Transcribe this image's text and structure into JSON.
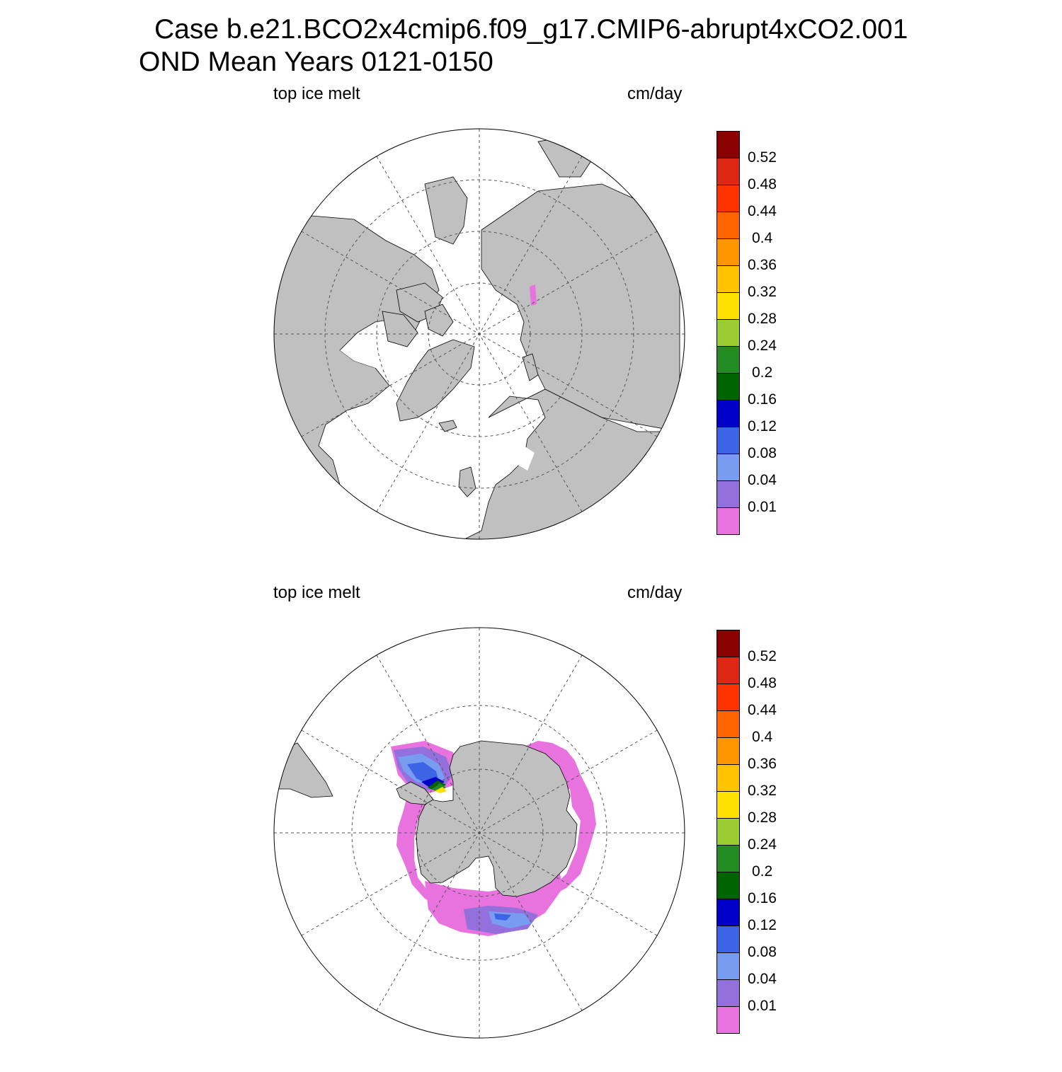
{
  "title": {
    "line1": "Case b.e21.BCO2x4cmip6.f09_g17.CMIP6-abrupt4xCO2.001",
    "line2": "OND Mean   Years 0121-0150"
  },
  "colors": {
    "land": "#c0c0c0",
    "ocean": "#ffffff",
    "grid": "#555555"
  },
  "colorbar": {
    "labels": [
      "0.01",
      "0.04",
      "0.08",
      "0.12",
      "0.16",
      "0.2",
      "0.24",
      "0.28",
      "0.32",
      "0.36",
      "0.4",
      "0.44",
      "0.48",
      "0.52"
    ],
    "colors": [
      "#e873df",
      "#9370db",
      "#789cf0",
      "#3e64e6",
      "#0000c8",
      "#006400",
      "#228b22",
      "#9acd32",
      "#ffe100",
      "#ffc300",
      "#ff9600",
      "#ff6400",
      "#ff3300",
      "#dc2814",
      "#8b0000"
    ]
  },
  "panels": [
    {
      "id": "north",
      "left_label": "top ice melt",
      "right_label": "cm/day",
      "hemisphere": "Arctic",
      "melt_levels": [
        "0.01"
      ]
    },
    {
      "id": "south",
      "left_label": "top ice melt",
      "right_label": "cm/day",
      "hemisphere": "Antarctic",
      "melt_levels": [
        "0.01",
        "0.04",
        "0.08",
        "0.12",
        "0.16",
        "0.2",
        "0.24",
        "0.28"
      ]
    }
  ]
}
